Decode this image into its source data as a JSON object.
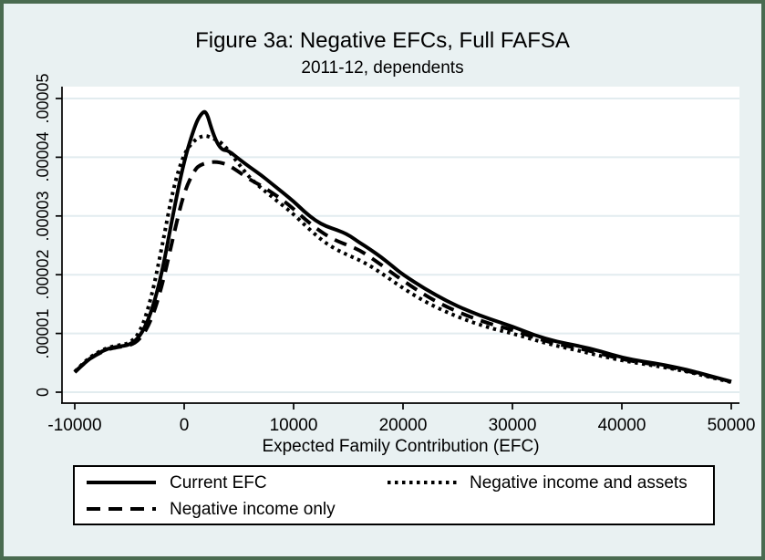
{
  "chart_data": {
    "type": "line",
    "title": "Figure 3a: Negative EFCs, Full FAFSA",
    "subtitle": "2011-12, dependents",
    "xlabel": "Expected Family Contribution (EFC)",
    "ylabel": "",
    "xlim": [
      -10000,
      50000
    ],
    "ylim": [
      0,
      5e-05
    ],
    "grid": "horizontal-only",
    "legend_position": "bottom-box",
    "x_tick_values": [
      -10000,
      0,
      10000,
      20000,
      30000,
      40000,
      50000
    ],
    "x_tick_labels": [
      "-10000",
      "0",
      "10000",
      "20000",
      "30000",
      "40000",
      "50000"
    ],
    "y_tick_values": [
      0,
      1e-05,
      2e-05,
      3e-05,
      4e-05,
      5e-05
    ],
    "y_tick_labels": [
      "0",
      ".00001",
      ".00002",
      ".00003",
      ".00004",
      ".00005"
    ],
    "value_unit_multiplier": 1e-05,
    "x": [
      -10000,
      -9000,
      -8000,
      -7000,
      -6000,
      -5000,
      -4000,
      -3000,
      -2000,
      -1000,
      0,
      1000,
      1500,
      2000,
      2500,
      3000,
      3500,
      4000,
      5000,
      6000,
      7000,
      8000,
      9000,
      10000,
      11000,
      12000,
      13000,
      14000,
      15000,
      16000,
      17000,
      18000,
      19000,
      20000,
      22000,
      24000,
      26000,
      28000,
      30000,
      32000,
      34000,
      36000,
      38000,
      40000,
      42000,
      44000,
      46000,
      48000,
      50000
    ],
    "series": [
      {
        "name": "Current EFC",
        "line_style": "solid",
        "color": "#000000",
        "values_x1e5": [
          0.34,
          0.52,
          0.65,
          0.74,
          0.78,
          0.8,
          0.95,
          1.35,
          2.05,
          3.05,
          3.95,
          4.55,
          4.73,
          4.8,
          4.48,
          4.24,
          4.12,
          4.12,
          3.97,
          3.83,
          3.7,
          3.55,
          3.4,
          3.25,
          3.07,
          2.92,
          2.82,
          2.76,
          2.68,
          2.55,
          2.43,
          2.3,
          2.15,
          2.0,
          1.76,
          1.55,
          1.38,
          1.24,
          1.12,
          0.97,
          0.86,
          0.79,
          0.7,
          0.59,
          0.52,
          0.46,
          0.38,
          0.28,
          0.18
        ]
      },
      {
        "name": "Negative income only",
        "line_style": "dashed",
        "color": "#000000",
        "values_x1e5": [
          0.34,
          0.52,
          0.64,
          0.73,
          0.77,
          0.79,
          0.9,
          1.22,
          1.82,
          2.65,
          3.42,
          3.8,
          3.87,
          3.9,
          3.92,
          3.92,
          3.9,
          3.87,
          3.75,
          3.62,
          3.52,
          3.4,
          3.27,
          3.12,
          2.95,
          2.8,
          2.67,
          2.57,
          2.5,
          2.42,
          2.3,
          2.17,
          2.03,
          1.9,
          1.65,
          1.45,
          1.29,
          1.16,
          1.06,
          0.93,
          0.82,
          0.75,
          0.66,
          0.56,
          0.5,
          0.44,
          0.36,
          0.27,
          0.18
        ]
      },
      {
        "name": "Negative income and assets",
        "line_style": "dotted",
        "color": "#000000",
        "values_x1e5": [
          0.35,
          0.54,
          0.67,
          0.76,
          0.8,
          0.83,
          1.02,
          1.6,
          2.5,
          3.48,
          4.08,
          4.3,
          4.35,
          4.37,
          4.33,
          4.29,
          4.23,
          4.13,
          3.88,
          3.65,
          3.48,
          3.33,
          3.18,
          3.03,
          2.85,
          2.68,
          2.53,
          2.42,
          2.33,
          2.25,
          2.15,
          2.03,
          1.9,
          1.77,
          1.54,
          1.36,
          1.21,
          1.09,
          1.0,
          0.89,
          0.79,
          0.71,
          0.62,
          0.54,
          0.48,
          0.42,
          0.35,
          0.26,
          0.17
        ]
      }
    ]
  },
  "legend": {
    "items": [
      {
        "label": "Current EFC",
        "style": "solid"
      },
      {
        "label": "Negative income and assets",
        "style": "dotted"
      },
      {
        "label": "Negative income only",
        "style": "dashed"
      }
    ]
  },
  "colors": {
    "frame": "#4a6b50",
    "background": "#e9f1f2",
    "plot_background": "#ffffff",
    "gridline": "#e2ecef",
    "line": "#000000"
  }
}
